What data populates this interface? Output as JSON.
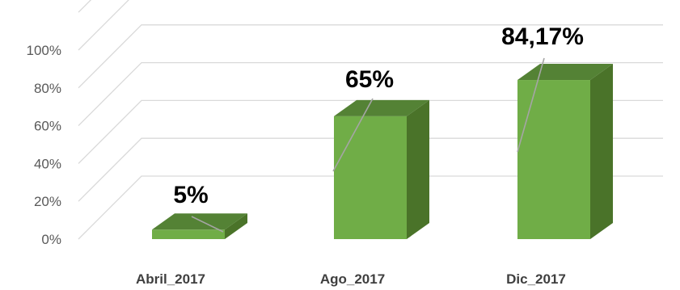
{
  "chart_data": {
    "type": "bar",
    "categories": [
      "Abril_2017",
      "Ago_2017",
      "Dic_2017"
    ],
    "values": [
      5,
      65,
      84.17
    ],
    "data_labels": [
      "5%",
      "65%",
      "84,17%"
    ],
    "y_ticks": [
      "0%",
      "20%",
      "40%",
      "60%",
      "80%",
      "100%"
    ],
    "ylim": [
      0,
      100
    ],
    "title": "",
    "xlabel": "",
    "ylabel": "",
    "grid": true,
    "style": "3d-column",
    "colors": {
      "front": "#70ad47",
      "top": "#548235",
      "side": "#4a7329",
      "grid": "#d9d9d9",
      "leader": "#a5a5a5"
    }
  }
}
